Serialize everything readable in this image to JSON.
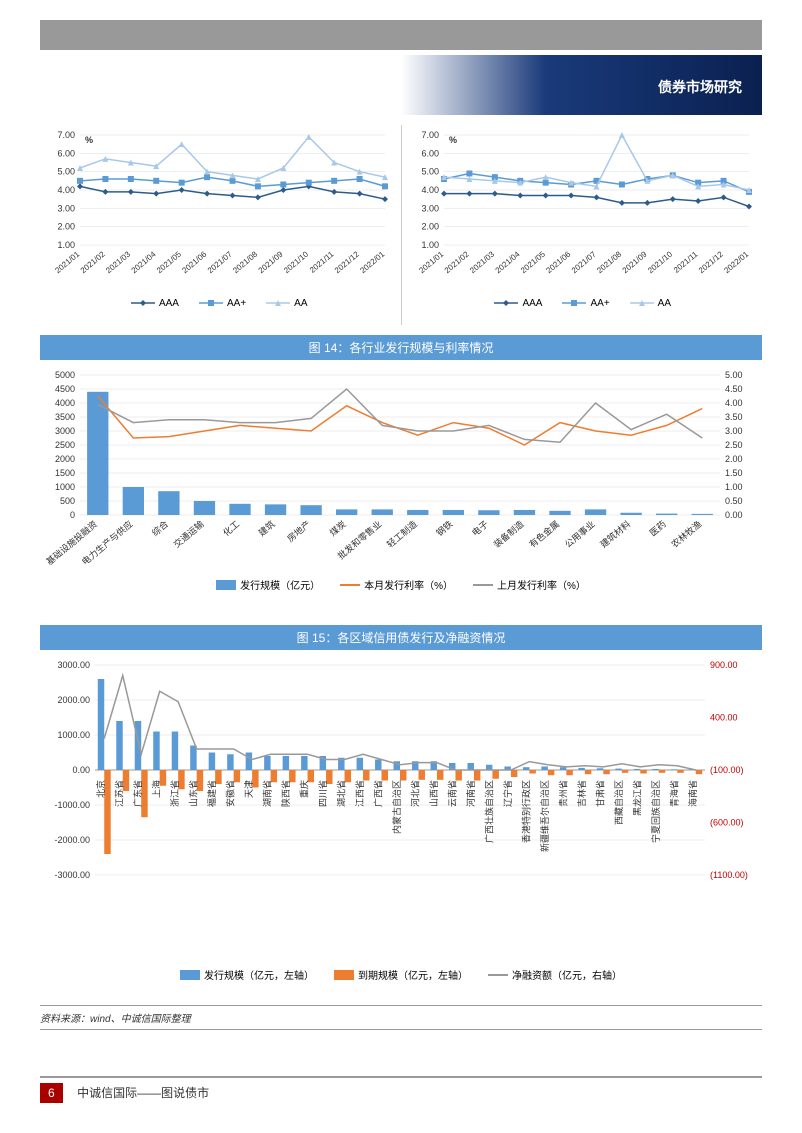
{
  "header": {
    "title": "债券市场研究"
  },
  "chart_top": {
    "ylabel": "%",
    "ylim": [
      1.0,
      7.0
    ],
    "ytick_step": 1.0,
    "x_labels": [
      "2021/01",
      "2021/02",
      "2021/03",
      "2021/04",
      "2021/05",
      "2021/06",
      "2021/07",
      "2021/08",
      "2021/09",
      "2021/10",
      "2021/11",
      "2021/12",
      "2022/01"
    ],
    "series": {
      "AAA": {
        "color": "#2e5c8a",
        "marker": "diamond",
        "values_left": [
          4.2,
          3.9,
          3.9,
          3.8,
          4.0,
          3.8,
          3.7,
          3.6,
          4.0,
          4.2,
          3.9,
          3.8,
          3.5
        ],
        "values_right": [
          3.8,
          3.8,
          3.8,
          3.7,
          3.7,
          3.7,
          3.6,
          3.3,
          3.3,
          3.5,
          3.4,
          3.6,
          3.1
        ]
      },
      "AA+": {
        "color": "#5b9bd5",
        "marker": "square",
        "values_left": [
          4.5,
          4.6,
          4.6,
          4.5,
          4.4,
          4.7,
          4.5,
          4.2,
          4.3,
          4.4,
          4.5,
          4.6,
          4.2
        ],
        "values_right": [
          4.6,
          4.9,
          4.7,
          4.5,
          4.4,
          4.3,
          4.5,
          4.3,
          4.6,
          4.8,
          4.4,
          4.5,
          3.9
        ]
      },
      "AA": {
        "color": "#a8c8e8",
        "marker": "triangle",
        "values_left": [
          5.2,
          5.7,
          5.5,
          5.3,
          6.5,
          5.0,
          4.8,
          4.6,
          5.2,
          6.9,
          5.5,
          5.0,
          4.7
        ],
        "values_right": [
          4.7,
          4.6,
          4.5,
          4.4,
          4.7,
          4.4,
          4.2,
          7.0,
          4.5,
          4.8,
          4.2,
          4.3,
          4.0
        ]
      }
    },
    "legend": [
      "AAA",
      "AA+",
      "AA"
    ]
  },
  "chart14": {
    "title": "图 14：各行业发行规模与利率情况",
    "left_ylim": [
      0,
      5000
    ],
    "left_tick": 500,
    "right_ylim": [
      0,
      5.0
    ],
    "right_tick": 0.5,
    "categories": [
      "基础设施投融资",
      "电力生产与供应",
      "综合",
      "交通运输",
      "化工",
      "建筑",
      "房地产",
      "煤炭",
      "批发和零售业",
      "轻工制造",
      "钢铁",
      "电子",
      "装备制造",
      "有色金属",
      "公用事业",
      "建筑材料",
      "医药",
      "农林牧渔"
    ],
    "bar_values": [
      4400,
      1000,
      850,
      500,
      400,
      380,
      350,
      200,
      200,
      180,
      180,
      170,
      180,
      150,
      200,
      80,
      50,
      40
    ],
    "bar_color": "#5b9bd5",
    "line_this": {
      "color": "#ed7d31",
      "values": [
        4.25,
        2.75,
        2.8,
        3.0,
        3.2,
        3.1,
        3.0,
        3.9,
        3.3,
        2.85,
        3.3,
        3.1,
        2.5,
        3.3,
        3.0,
        2.85,
        3.2,
        3.8
      ]
    },
    "line_last": {
      "color": "#999999",
      "values": [
        3.95,
        3.3,
        3.4,
        3.4,
        3.3,
        3.3,
        3.45,
        4.5,
        3.2,
        3.0,
        3.0,
        3.2,
        2.7,
        2.6,
        4.0,
        3.05,
        3.6,
        2.75
      ]
    },
    "legend": {
      "bar": "发行规模（亿元）",
      "this": "本月发行利率（%）",
      "last": "上月发行利率（%）"
    }
  },
  "chart15": {
    "title": "图 15：各区域信用债发行及净融资情况",
    "left_ylim": [
      -3000,
      3000
    ],
    "left_tick": 1000,
    "right_ylim": [
      -1100,
      900
    ],
    "right_ticks": [
      900,
      400,
      -100,
      -600,
      -1100
    ],
    "right_color": "#c00000",
    "categories": [
      "北京",
      "江苏省",
      "广东省",
      "上海",
      "浙江省",
      "山东省",
      "福建省",
      "安徽省",
      "天津",
      "湖南省",
      "陕西省",
      "重庆",
      "四川省",
      "湖北省",
      "江西省",
      "广西省",
      "内蒙古自治区",
      "河北省",
      "山西省",
      "云南省",
      "河南省",
      "广西壮族自治区",
      "辽宁省",
      "香港特别行政区",
      "新疆维吾尔自治区",
      "贵州省",
      "吉林省",
      "甘肃省",
      "西藏自治区",
      "黑龙江省",
      "宁夏回族自治区",
      "青海省",
      "海南省"
    ],
    "issue": {
      "color": "#5b9bd5",
      "values": [
        2600,
        1400,
        1400,
        1100,
        1100,
        700,
        500,
        450,
        500,
        400,
        400,
        400,
        400,
        350,
        350,
        300,
        250,
        250,
        250,
        200,
        200,
        150,
        100,
        80,
        100,
        80,
        60,
        50,
        40,
        30,
        30,
        20,
        20
      ]
    },
    "mature": {
      "color": "#ed7d31",
      "values": [
        -2400,
        -600,
        -1350,
        -450,
        -550,
        -600,
        -400,
        -350,
        -500,
        -350,
        -350,
        -350,
        -400,
        -350,
        -300,
        -300,
        -300,
        -280,
        -280,
        -300,
        -300,
        -250,
        -200,
        -100,
        -150,
        -150,
        -120,
        -120,
        -80,
        -100,
        -80,
        -80,
        -120
      ]
    },
    "net": {
      "color": "#999999",
      "values": [
        200,
        800,
        50,
        650,
        550,
        100,
        100,
        100,
        0,
        50,
        50,
        50,
        0,
        0,
        50,
        0,
        -50,
        -30,
        -30,
        -100,
        -100,
        -100,
        -100,
        -20,
        -50,
        -70,
        -60,
        -70,
        -40,
        -70,
        -50,
        -60,
        -100
      ]
    },
    "legend": {
      "issue": "发行规模（亿元，左轴）",
      "mature": "到期规模（亿元，左轴）",
      "net": "净融资额（亿元，右轴）"
    }
  },
  "source": "资料来源：wind、中诚信国际整理",
  "footer": {
    "page": "6",
    "text": "中诚信国际——图说债市"
  }
}
